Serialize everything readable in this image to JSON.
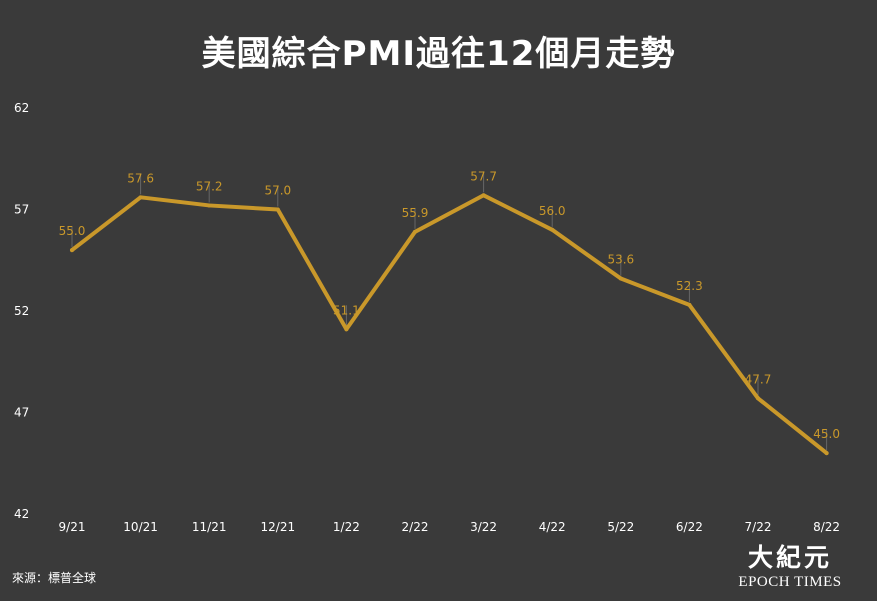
{
  "title": "美國綜合PMI過往12個月走勢",
  "source": "來源：標普全球",
  "logo": {
    "chinese": "大紀元",
    "english": "EPOCH TIMES"
  },
  "colors": {
    "background": "#3a3a3a",
    "line": "#c9982a",
    "label": "#c9982a",
    "axis_text": "#ffffff"
  },
  "chart_data": {
    "type": "line",
    "title": "美國綜合PMI過往12個月走勢",
    "xlabel": "",
    "ylabel": "",
    "categories": [
      "9/21",
      "10/21",
      "11/21",
      "12/21",
      "1/22",
      "2/22",
      "3/22",
      "4/22",
      "5/22",
      "6/22",
      "7/22",
      "8/22"
    ],
    "values": [
      55.0,
      57.6,
      57.2,
      57.0,
      51.1,
      55.9,
      57.7,
      56.0,
      53.6,
      52.3,
      47.7,
      45.0
    ],
    "value_labels": [
      "55.0",
      "57.6",
      "57.2",
      "57.0",
      "51.1",
      "55.9",
      "57.7",
      "56.0",
      "53.6",
      "52.3",
      "47.7",
      "45.0"
    ],
    "ylim": [
      42,
      62
    ],
    "yticks": [
      "62",
      "57",
      "52",
      "47",
      "42"
    ],
    "ytick_values": [
      62,
      57,
      52,
      47,
      42
    ],
    "grid": false,
    "legend": "none"
  }
}
